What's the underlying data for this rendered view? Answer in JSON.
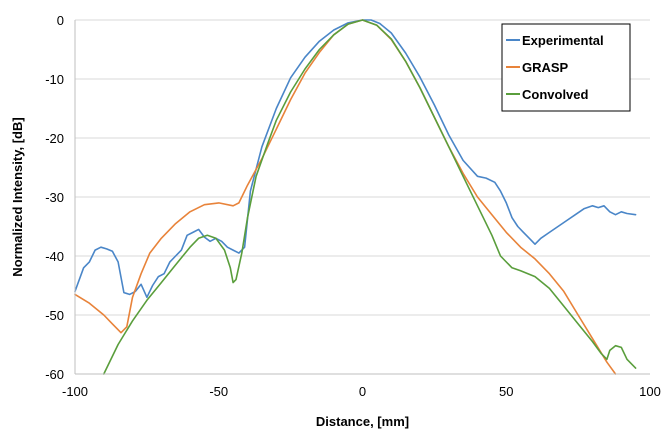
{
  "chart_data": {
    "type": "line",
    "title": "",
    "xlabel": "Distance, [mm]",
    "ylabel": "Normalized Intensity, [dB]",
    "xlim": [
      -100,
      100
    ],
    "ylim": [
      -60,
      0
    ],
    "xticks": [
      -100,
      -50,
      0,
      50,
      100
    ],
    "yticks": [
      0,
      -10,
      -20,
      -30,
      -40,
      -50,
      -60
    ],
    "grid": "horizontal",
    "legend_position": "top-right",
    "series": [
      {
        "name": "Experimental",
        "color": "#4a86c8",
        "x": [
          -100,
          -97,
          -95,
          -93,
          -91,
          -89,
          -87,
          -85,
          -83,
          -81,
          -79,
          -77,
          -75,
          -73,
          -71,
          -69,
          -67,
          -65,
          -63,
          -61,
          -59,
          -57,
          -55,
          -53,
          -51,
          -49,
          -47,
          -45,
          -43,
          -41,
          -39,
          -35,
          -30,
          -25,
          -20,
          -15,
          -10,
          -5,
          0,
          3,
          6,
          10,
          15,
          20,
          25,
          30,
          35,
          40,
          43,
          46,
          48,
          50,
          52,
          54,
          56,
          58,
          60,
          62,
          65,
          68,
          71,
          74,
          77,
          80,
          82,
          84,
          86,
          88,
          90,
          92,
          95
        ],
        "values": [
          -46.0,
          -42.0,
          -41.0,
          -39.0,
          -38.5,
          -38.8,
          -39.2,
          -41.0,
          -46.2,
          -46.5,
          -46.0,
          -44.8,
          -47.0,
          -45.0,
          -43.5,
          -43.0,
          -41.0,
          -40.0,
          -39.0,
          -36.5,
          -36.0,
          -35.5,
          -36.8,
          -37.5,
          -37.0,
          -37.5,
          -38.5,
          -39.0,
          -39.5,
          -38.5,
          -29.0,
          -21.5,
          -15.0,
          -9.8,
          -6.3,
          -3.6,
          -1.7,
          -0.5,
          0.0,
          0.0,
          -0.6,
          -2.2,
          -5.6,
          -9.7,
          -14.4,
          -19.5,
          -23.8,
          -26.5,
          -26.8,
          -27.5,
          -29.0,
          -31.0,
          -33.5,
          -35.0,
          -36.0,
          -37.0,
          -38.0,
          -37.0,
          -36.0,
          -35.0,
          -34.0,
          -33.0,
          -32.0,
          -31.5,
          -31.8,
          -31.5,
          -32.5,
          -33.0,
          -32.5,
          -32.8,
          -33.0
        ]
      },
      {
        "name": "GRASP",
        "color": "#e8833a",
        "x": [
          -100,
          -95,
          -90,
          -87,
          -84,
          -82,
          -80,
          -77,
          -74,
          -70,
          -65,
          -60,
          -55,
          -50,
          -45,
          -43,
          -40,
          -35,
          -30,
          -25,
          -20,
          -15,
          -10,
          -5,
          0,
          5,
          10,
          15,
          20,
          25,
          30,
          35,
          40,
          45,
          50,
          55,
          60,
          65,
          70,
          75,
          80,
          85,
          88
        ],
        "values": [
          -46.5,
          -48.0,
          -50.0,
          -51.5,
          -53.0,
          -52.0,
          -47.0,
          -43.0,
          -39.5,
          -37.0,
          -34.5,
          -32.5,
          -31.3,
          -31.0,
          -31.5,
          -31.0,
          -28.0,
          -23.5,
          -18.5,
          -13.5,
          -9.0,
          -5.5,
          -2.5,
          -0.7,
          0.0,
          -0.9,
          -3.3,
          -7.0,
          -11.5,
          -16.5,
          -21.5,
          -26.0,
          -30.0,
          -33.0,
          -36.0,
          -38.5,
          -40.5,
          -43.0,
          -46.0,
          -50.0,
          -54.0,
          -58.0,
          -60.0
        ]
      },
      {
        "name": "Convolved",
        "color": "#5a9e3c",
        "x": [
          -90,
          -85,
          -80,
          -75,
          -70,
          -65,
          -60,
          -57,
          -54,
          -51,
          -48,
          -46,
          -45,
          -44,
          -42,
          -40,
          -37,
          -33,
          -30,
          -25,
          -20,
          -15,
          -10,
          -5,
          0,
          5,
          10,
          15,
          20,
          25,
          30,
          35,
          40,
          45,
          48,
          52,
          55,
          60,
          65,
          70,
          75,
          80,
          83,
          85,
          86,
          88,
          90,
          92,
          95
        ],
        "values": [
          -60.0,
          -55.0,
          -51.0,
          -47.5,
          -44.5,
          -41.5,
          -38.5,
          -37.0,
          -36.5,
          -37.0,
          -39.0,
          -42.0,
          -44.5,
          -44.0,
          -39.5,
          -33.5,
          -26.5,
          -21.0,
          -17.0,
          -12.2,
          -8.3,
          -5.0,
          -2.5,
          -0.7,
          0.0,
          -0.9,
          -3.2,
          -7.0,
          -11.5,
          -16.5,
          -21.5,
          -26.5,
          -31.5,
          -36.5,
          -40.0,
          -42.0,
          -42.5,
          -43.5,
          -45.5,
          -48.5,
          -51.5,
          -54.5,
          -56.5,
          -57.5,
          -56.0,
          -55.2,
          -55.5,
          -57.5,
          -59.0
        ]
      }
    ]
  }
}
